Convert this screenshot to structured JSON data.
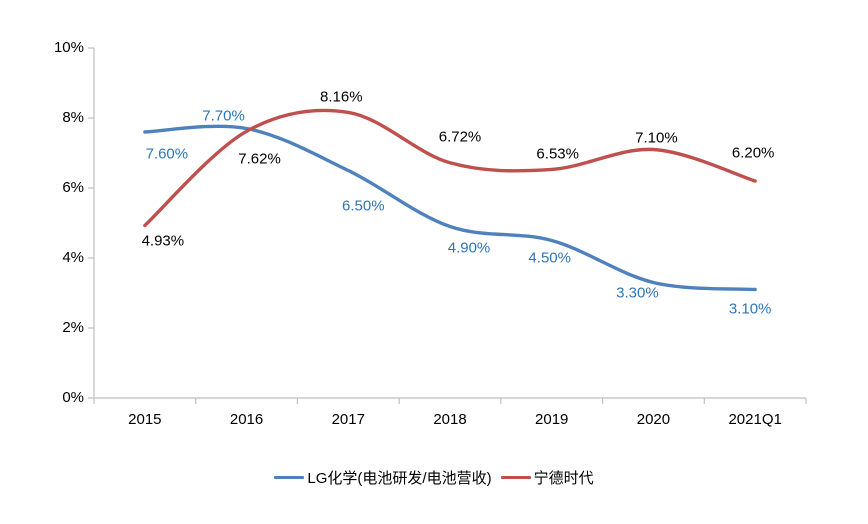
{
  "chart_data": {
    "type": "line",
    "title": "",
    "categories": [
      "2015",
      "2016",
      "2017",
      "2018",
      "2019",
      "2020",
      "2021Q1"
    ],
    "series": [
      {
        "key": "lg-chem",
        "name": "LG化学(电池研发/电池营收)",
        "values": [
          7.6,
          7.7,
          6.5,
          4.9,
          4.5,
          3.3,
          3.1
        ],
        "labels": [
          "7.60%",
          "7.70%",
          "6.50%",
          "4.90%",
          "4.50%",
          "3.30%",
          "3.10%"
        ],
        "label_offsets": [
          [
            22,
            22
          ],
          [
            -23,
            -13
          ],
          [
            15,
            35
          ],
          [
            19,
            21
          ],
          [
            -2,
            17
          ],
          [
            -16,
            10
          ],
          [
            -5,
            19
          ]
        ],
        "color": "#4F81BD",
        "label_color": "#2E75B6",
        "smooth": true
      },
      {
        "key": "catl",
        "name": "宁德时代",
        "values": [
          4.93,
          7.62,
          8.16,
          6.72,
          6.53,
          7.1,
          6.2
        ],
        "labels": [
          "4.93%",
          "7.62%",
          "8.16%",
          "6.72%",
          "6.53%",
          "7.10%",
          "6.20%"
        ],
        "label_offsets": [
          [
            18,
            16
          ],
          [
            13,
            28
          ],
          [
            -7,
            -15
          ],
          [
            10,
            -26
          ],
          [
            6,
            -15
          ],
          [
            3,
            -12
          ],
          [
            -2,
            -28
          ]
        ],
        "color": "#C0504D",
        "label_color": "#000000",
        "smooth": true
      }
    ],
    "y_axis": {
      "min": 0,
      "max": 10,
      "step": 2,
      "tick_labels": [
        "0%",
        "2%",
        "4%",
        "6%",
        "8%",
        "10%"
      ]
    },
    "x_axis": {
      "tick_marks": "between-categories"
    },
    "grid": false,
    "legend_position": "bottom-center",
    "axis_color": "#BFBFBF",
    "background_color": "#FFFFFF"
  }
}
